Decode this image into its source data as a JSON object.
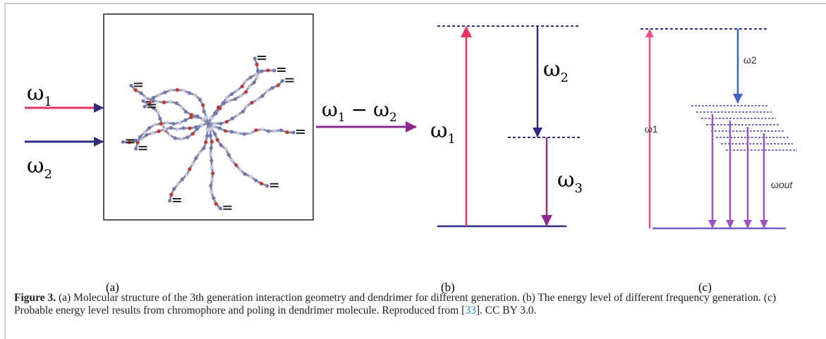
{
  "figure": {
    "panel_a": {
      "input_1": {
        "symbol": "ω",
        "sub": "1"
      },
      "input_2": {
        "symbol": "ω",
        "sub": "2"
      },
      "output": {
        "symbol_1": "ω",
        "sub_1": "1",
        "minus": "−",
        "symbol_2": "ω",
        "sub_2": "2"
      },
      "label": "(a)"
    },
    "panel_b": {
      "pump": {
        "symbol": "ω",
        "sub": "1"
      },
      "stokes": {
        "symbol": "ω",
        "sub": "2"
      },
      "output": {
        "symbol": "ω",
        "sub": "3"
      },
      "label": "(b)"
    },
    "panel_c": {
      "pump": "ω1",
      "stokes": "ω2",
      "output": {
        "symbol": "ω",
        "sub": "out"
      },
      "label": "(c)"
    },
    "caption": {
      "bold": "Figure 3.",
      "text": " (a) Molecular structure of the 3th generation interaction geometry and dendrimer for different generation. (b) The energy level of different frequency generation. (c) Probable energy level results from chromophore and poling in dendrimer molecule.  Reproduced from [",
      "ref": "33",
      "tail": "]. CC BY 3.0."
    }
  }
}
